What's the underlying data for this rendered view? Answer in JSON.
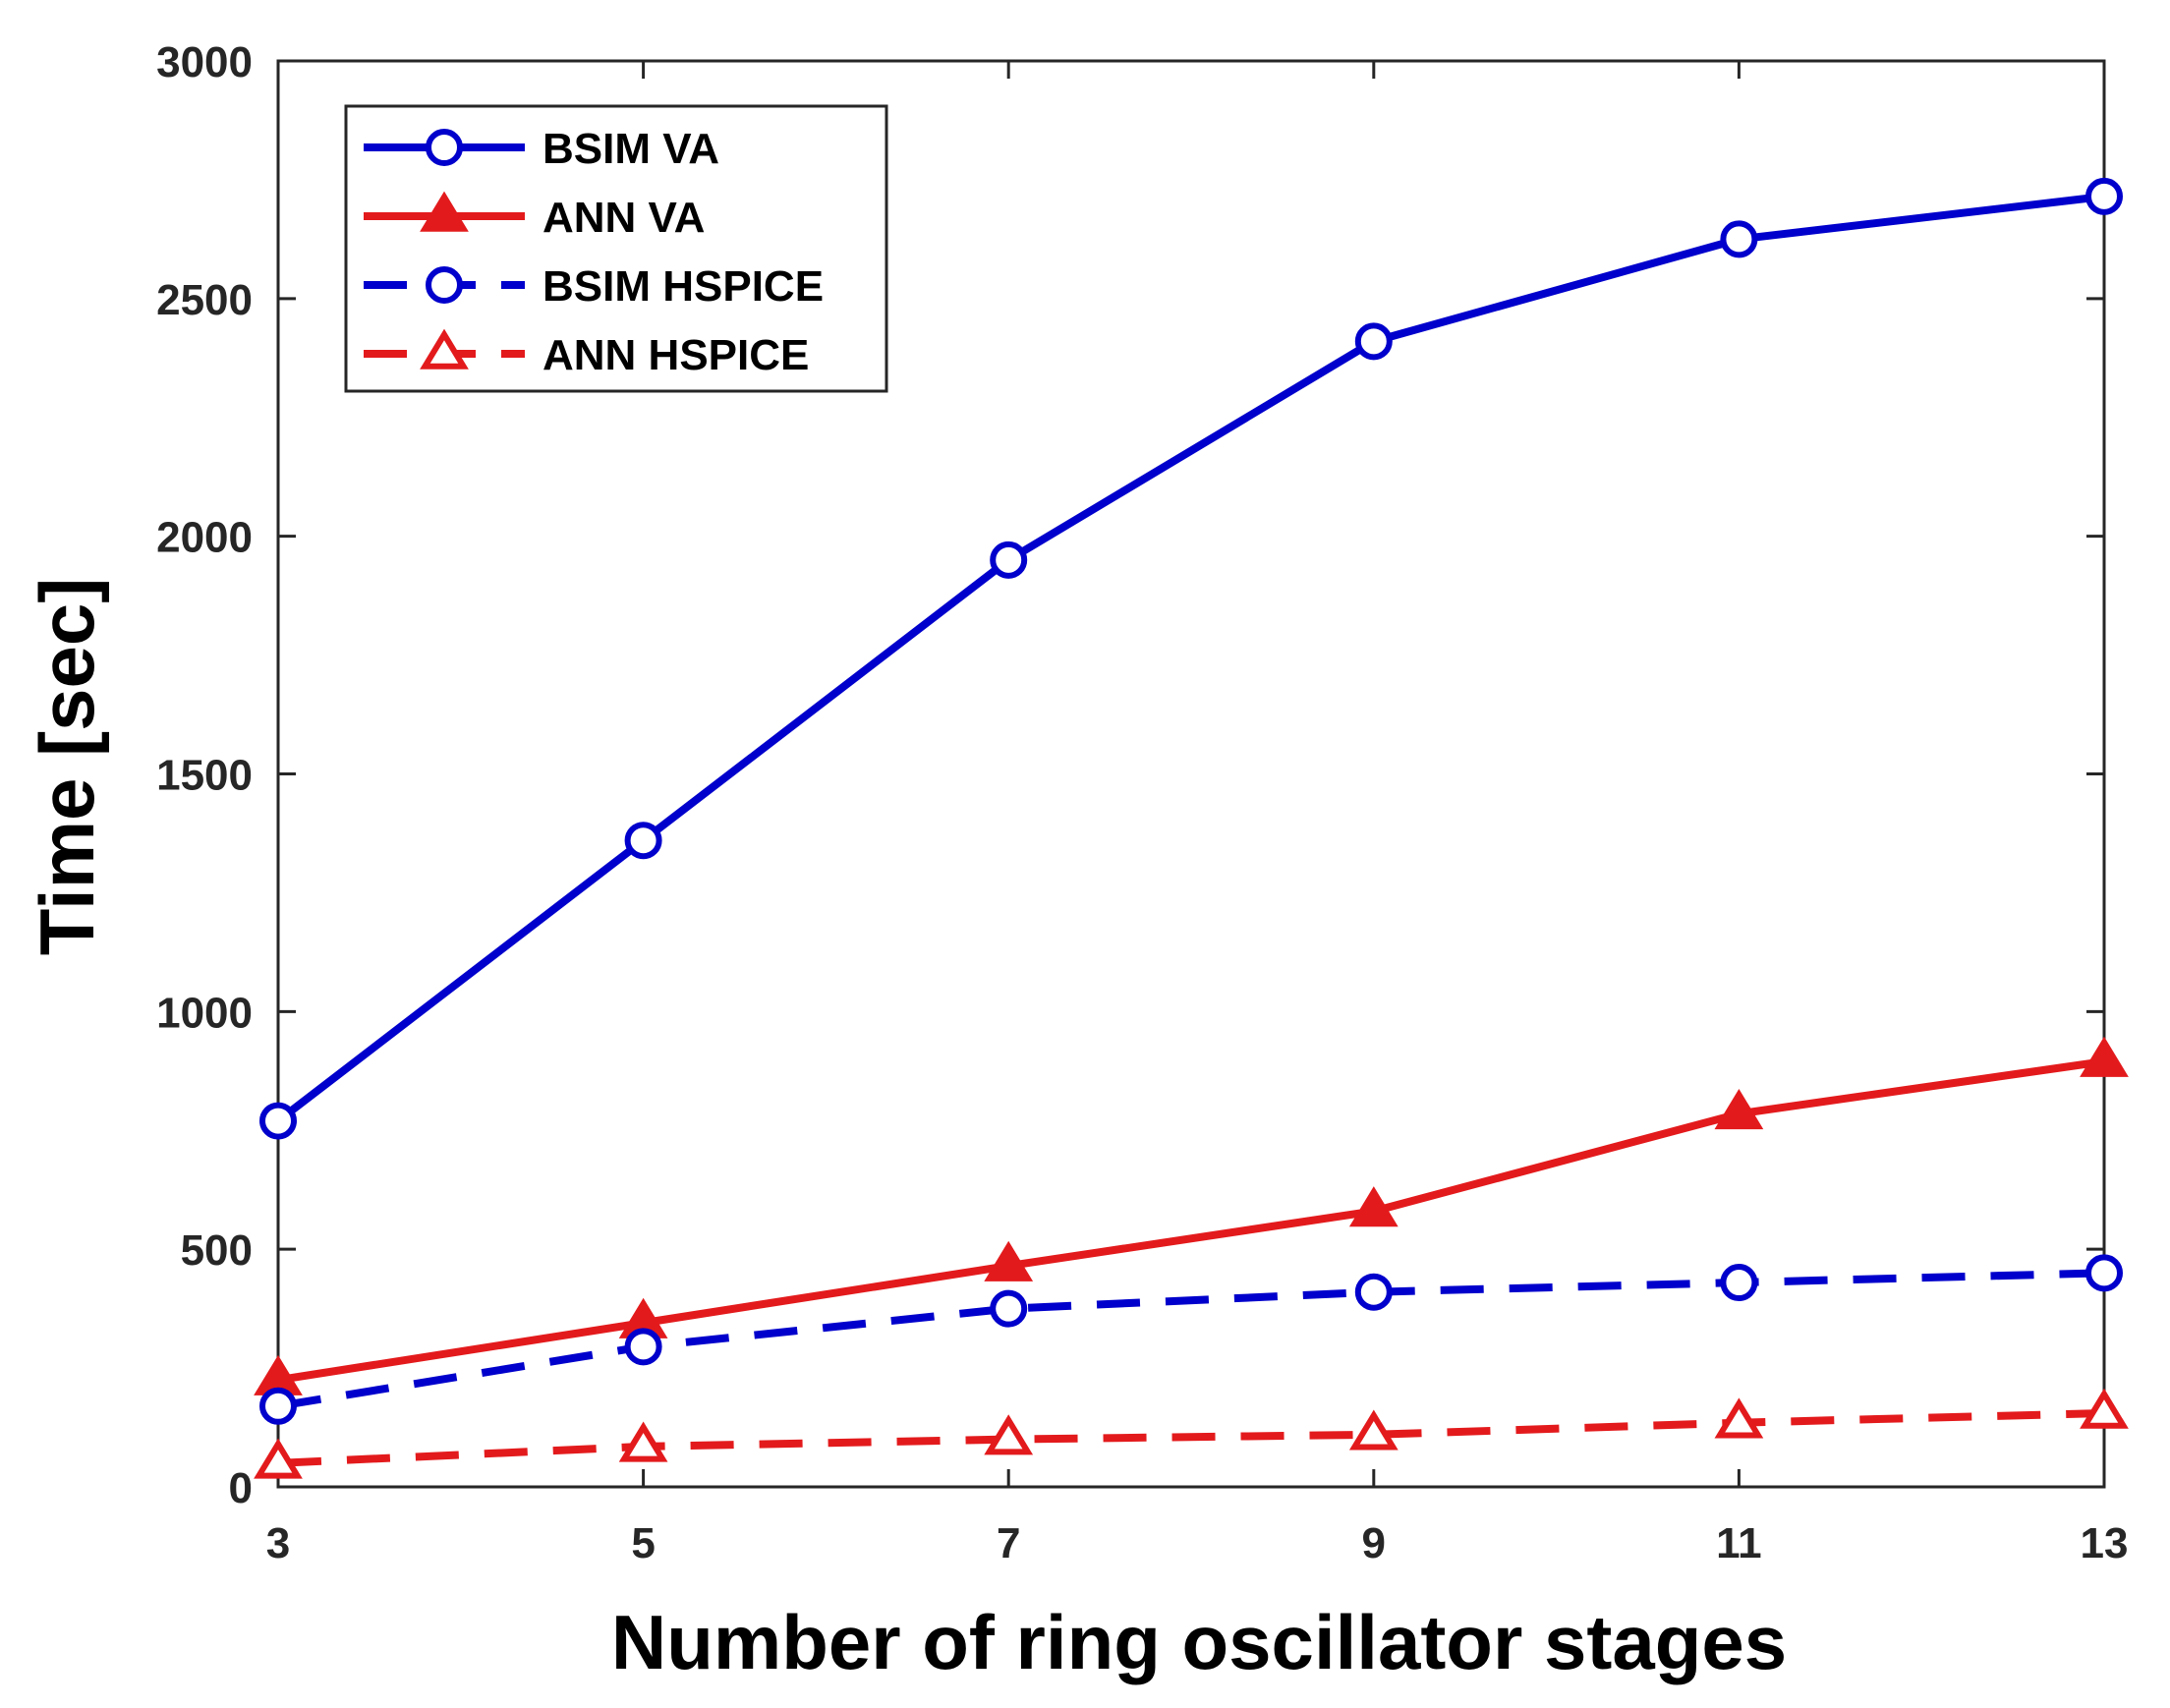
{
  "chart_data": {
    "type": "line",
    "xlabel": "Number of ring oscillator stages",
    "ylabel": "Time [sec]",
    "x": [
      3,
      5,
      7,
      9,
      11,
      13
    ],
    "xticks": [
      "3",
      "5",
      "7",
      "9",
      "11",
      "13"
    ],
    "yticks": [
      "0",
      "500",
      "1000",
      "1500",
      "2000",
      "2500",
      "3000"
    ],
    "xlim": [
      3,
      13
    ],
    "ylim": [
      0,
      3000
    ],
    "grid": false,
    "legend_position": "top-left",
    "series": [
      {
        "name": "BSIM VA",
        "values": [
          770,
          1360,
          1950,
          2410,
          2625,
          2715
        ],
        "color": "#0000cc",
        "dash": "solid",
        "marker": "circle",
        "filled": false
      },
      {
        "name": "ANN VA",
        "values": [
          225,
          345,
          465,
          580,
          785,
          895
        ],
        "color": "#e31a1c",
        "dash": "solid",
        "marker": "triangle",
        "filled": true
      },
      {
        "name": "BSIM HSPICE",
        "values": [
          170,
          295,
          375,
          410,
          430,
          450
        ],
        "color": "#0000cc",
        "dash": "dashed",
        "marker": "circle",
        "filled": false
      },
      {
        "name": "ANN HSPICE",
        "values": [
          50,
          85,
          100,
          110,
          135,
          155
        ],
        "color": "#e31a1c",
        "dash": "dashed",
        "marker": "triangle",
        "filled": false
      }
    ]
  }
}
